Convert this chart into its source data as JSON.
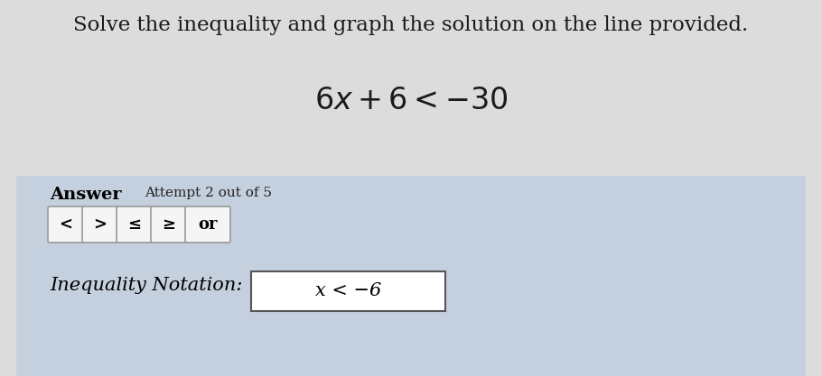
{
  "title": "Solve the inequality and graph the solution on the line provided.",
  "answer_label": "Answer",
  "attempt_text": "Attempt 2 out of 5",
  "buttons": [
    "<",
    ">",
    "≤",
    "≥",
    "or"
  ],
  "inequality_label": "Inequality Notation:",
  "inequality_answer": "x < −6",
  "bg_top": "#dcdcdc",
  "bg_bottom": "#c5d0de",
  "title_color": "#1a1a1a",
  "equation_color": "#1a1a1a",
  "box_bg": "#f5f5f5",
  "box_border": "#999999",
  "answer_bold_color": "#000000",
  "attempt_color": "#222222",
  "ineq_box_bg": "#ffffff",
  "ineq_box_border": "#555555"
}
